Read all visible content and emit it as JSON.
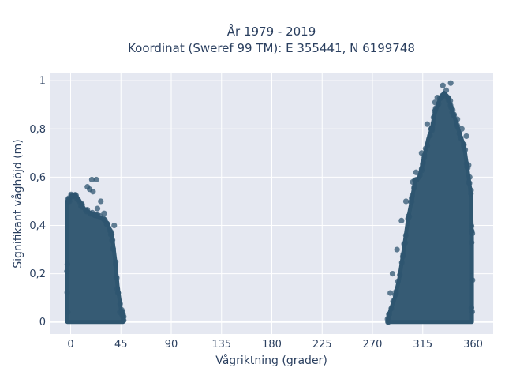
{
  "chart_data": {
    "type": "scatter",
    "title_lines": [
      "År 1979 - 2019",
      "Koordinat (Sweref 99 TM): E 355441, N 6199748"
    ],
    "xlabel": "Vågriktning (grader)",
    "ylabel": "Signifikant våghöjd (m)",
    "xlim": [
      -18,
      378
    ],
    "ylim": [
      -0.05,
      1.03
    ],
    "x_ticks": [
      0,
      45,
      90,
      135,
      180,
      225,
      270,
      315,
      360
    ],
    "x_tick_labels": [
      "0",
      "45",
      "90",
      "135",
      "180",
      "225",
      "270",
      "315",
      "360"
    ],
    "y_ticks": [
      0,
      0.2,
      0.4,
      0.6,
      0.8,
      1
    ],
    "y_tick_labels": [
      "0",
      "0,2",
      "0,4",
      "0,6",
      "0,8",
      "1"
    ],
    "grid": true,
    "marker_color": "#2f5670",
    "plot_background": "#e5e8f1",
    "series": [
      {
        "clusters": [
          {
            "envelope": [
              [
                -3,
                0.0
              ],
              [
                -3,
                0.5
              ],
              [
                0,
                0.52
              ],
              [
                4,
                0.53
              ],
              [
                8,
                0.5
              ],
              [
                12,
                0.47
              ],
              [
                18,
                0.45
              ],
              [
                22,
                0.44
              ],
              [
                28,
                0.43
              ],
              [
                33,
                0.41
              ],
              [
                37,
                0.36
              ],
              [
                40,
                0.25
              ],
              [
                42,
                0.15
              ],
              [
                45,
                0.05
              ],
              [
                47,
                0.03
              ],
              [
                47,
                0.0
              ]
            ],
            "outliers": [
              [
                19,
                0.59
              ],
              [
                23,
                0.59
              ],
              [
                17,
                0.55
              ],
              [
                15,
                0.56
              ],
              [
                20,
                0.54
              ],
              [
                27,
                0.5
              ],
              [
                24,
                0.47
              ],
              [
                30,
                0.45
              ],
              [
                35,
                0.38
              ],
              [
                39,
                0.4
              ],
              [
                44,
                0.04
              ],
              [
                46,
                0.03
              ],
              [
                2,
                0.52
              ],
              [
                -1,
                0.5
              ]
            ]
          },
          {
            "envelope": [
              [
                284,
                0.0
              ],
              [
                284,
                0.02
              ],
              [
                290,
                0.1
              ],
              [
                294,
                0.18
              ],
              [
                298,
                0.3
              ],
              [
                302,
                0.43
              ],
              [
                305,
                0.5
              ],
              [
                308,
                0.58
              ],
              [
                312,
                0.6
              ],
              [
                316,
                0.68
              ],
              [
                320,
                0.76
              ],
              [
                323,
                0.8
              ],
              [
                326,
                0.87
              ],
              [
                330,
                0.92
              ],
              [
                334,
                0.95
              ],
              [
                338,
                0.93
              ],
              [
                341,
                0.88
              ],
              [
                344,
                0.84
              ],
              [
                348,
                0.78
              ],
              [
                352,
                0.73
              ],
              [
                356,
                0.6
              ],
              [
                358,
                0.53
              ],
              [
                359,
                0.35
              ],
              [
                359,
                0.0
              ]
            ],
            "outliers": [
              [
                333,
                0.98
              ],
              [
                340,
                0.99
              ],
              [
                336,
                0.96
              ],
              [
                328,
                0.93
              ],
              [
                326,
                0.91
              ],
              [
                343,
                0.86
              ],
              [
                346,
                0.84
              ],
              [
                350,
                0.8
              ],
              [
                354,
                0.77
              ],
              [
                356,
                0.65
              ],
              [
                357,
                0.6
              ],
              [
                319,
                0.82
              ],
              [
                314,
                0.7
              ],
              [
                309,
                0.62
              ],
              [
                306,
                0.58
              ],
              [
                300,
                0.5
              ],
              [
                296,
                0.42
              ],
              [
                292,
                0.3
              ],
              [
                288,
                0.2
              ],
              [
                286,
                0.12
              ]
            ]
          }
        ]
      }
    ]
  }
}
